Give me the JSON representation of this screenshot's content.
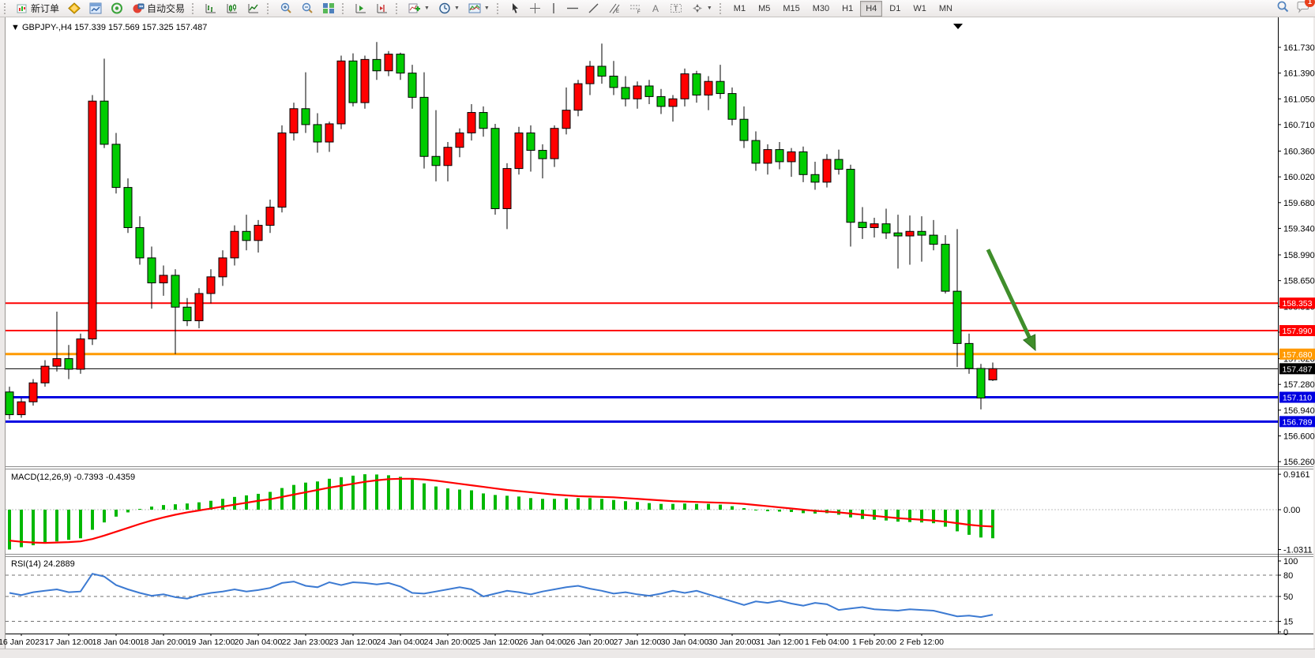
{
  "toolbar": {
    "new_order_label": "新订单",
    "autotrading_label": "自动交易",
    "timeframes": [
      "M1",
      "M5",
      "M15",
      "M30",
      "H1",
      "H4",
      "D1",
      "W1",
      "MN"
    ],
    "active_timeframe": "H4",
    "notification_count": "1"
  },
  "chart": {
    "title": "GBPJPY-,H4",
    "ohlc_text": "157.339 157.569 157.325 157.487",
    "macd_label": "MACD(12,26,9) -0.7393 -0.4359",
    "rsi_label": "RSI(14) 24.2889"
  },
  "chart_data": {
    "type": "candlestick",
    "symbol": "GBPJPY-",
    "period": "H4",
    "current_bar": {
      "open": 157.339,
      "high": 157.569,
      "low": 157.325,
      "close": 157.487
    },
    "price_axis_ticks": [
      161.73,
      161.39,
      161.05,
      160.71,
      160.36,
      160.02,
      159.68,
      159.34,
      158.99,
      158.65,
      158.31,
      157.97,
      157.62,
      157.28,
      156.94,
      156.6,
      156.26
    ],
    "price_lines": [
      {
        "price": 158.353,
        "label": "158.353",
        "color": "#fe0000",
        "width": 2
      },
      {
        "price": 157.99,
        "label": "157.990",
        "color": "#fe0000",
        "width": 2
      },
      {
        "price": 157.68,
        "label": "157.680",
        "color": "#ff9a00",
        "width": 3
      },
      {
        "price": 157.487,
        "label": "157.487",
        "color": "#000000",
        "width": 1
      },
      {
        "price": 157.11,
        "label": "157.110",
        "color": "#0000e1",
        "width": 3
      },
      {
        "price": 156.789,
        "label": "156.789",
        "color": "#0000e1",
        "width": 3
      }
    ],
    "time_labels": [
      "16 Jan 2023",
      "17 Jan 12:00",
      "18 Jan 04:00",
      "18 Jan 20:00",
      "19 Jan 12:00",
      "20 Jan 04:00",
      "22 Jan 23:00",
      "23 Jan 12:00",
      "24 Jan 04:00",
      "24 Jan 20:00",
      "25 Jan 12:00",
      "26 Jan 04:00",
      "26 Jan 20:00",
      "27 Jan 12:00",
      "30 Jan 04:00",
      "30 Jan 20:00",
      "31 Jan 12:00",
      "1 Feb 04:00",
      "1 Feb 20:00",
      "2 Feb 12:00"
    ],
    "candles": [
      [
        157.18,
        157.25,
        156.82,
        156.88
      ],
      [
        156.88,
        157.1,
        156.84,
        157.05
      ],
      [
        157.05,
        157.35,
        157.0,
        157.3
      ],
      [
        157.3,
        157.6,
        157.25,
        157.52
      ],
      [
        157.52,
        158.24,
        157.45,
        157.62
      ],
      [
        157.62,
        157.8,
        157.35,
        157.48
      ],
      [
        157.48,
        157.95,
        157.42,
        157.88
      ],
      [
        157.88,
        161.1,
        157.8,
        161.02
      ],
      [
        161.02,
        161.58,
        160.4,
        160.45
      ],
      [
        160.45,
        160.6,
        159.8,
        159.88
      ],
      [
        159.88,
        160.0,
        159.28,
        159.35
      ],
      [
        159.35,
        159.5,
        158.86,
        158.95
      ],
      [
        158.95,
        159.1,
        158.28,
        158.62
      ],
      [
        158.62,
        158.85,
        158.45,
        158.72
      ],
      [
        158.72,
        158.8,
        157.68,
        158.3
      ],
      [
        158.3,
        158.42,
        158.05,
        158.12
      ],
      [
        158.12,
        158.55,
        158.02,
        158.48
      ],
      [
        158.48,
        158.8,
        158.35,
        158.7
      ],
      [
        158.7,
        159.05,
        158.58,
        158.95
      ],
      [
        158.95,
        159.38,
        158.85,
        159.3
      ],
      [
        159.3,
        159.52,
        159.05,
        159.18
      ],
      [
        159.18,
        159.45,
        159.02,
        159.38
      ],
      [
        159.38,
        159.72,
        159.28,
        159.62
      ],
      [
        159.62,
        160.7,
        159.55,
        160.6
      ],
      [
        160.6,
        161.0,
        160.5,
        160.92
      ],
      [
        160.92,
        161.4,
        160.6,
        160.71
      ],
      [
        160.71,
        160.86,
        160.34,
        160.48
      ],
      [
        160.48,
        160.75,
        160.35,
        160.72
      ],
      [
        160.72,
        161.62,
        160.65,
        161.55
      ],
      [
        161.55,
        161.65,
        160.95,
        161.0
      ],
      [
        161.0,
        161.62,
        160.92,
        161.57
      ],
      [
        161.57,
        161.8,
        161.3,
        161.42
      ],
      [
        161.42,
        161.68,
        161.35,
        161.64
      ],
      [
        161.64,
        161.66,
        161.3,
        161.39
      ],
      [
        161.39,
        161.5,
        160.92,
        161.07
      ],
      [
        161.07,
        161.4,
        160.13,
        160.29
      ],
      [
        160.29,
        160.9,
        159.96,
        160.17
      ],
      [
        160.17,
        160.48,
        159.96,
        160.41
      ],
      [
        160.41,
        160.66,
        160.28,
        160.6
      ],
      [
        160.6,
        160.98,
        160.5,
        160.87
      ],
      [
        160.87,
        160.95,
        160.55,
        160.66
      ],
      [
        160.66,
        160.72,
        159.52,
        159.6
      ],
      [
        159.6,
        160.2,
        159.33,
        160.13
      ],
      [
        160.13,
        160.68,
        160.05,
        160.6
      ],
      [
        160.6,
        160.7,
        160.09,
        160.37
      ],
      [
        160.37,
        160.45,
        160.0,
        160.26
      ],
      [
        160.26,
        160.7,
        160.15,
        160.66
      ],
      [
        160.66,
        161.2,
        160.58,
        160.9
      ],
      [
        160.9,
        161.3,
        160.82,
        161.25
      ],
      [
        161.25,
        161.55,
        161.1,
        161.48
      ],
      [
        161.48,
        161.78,
        161.25,
        161.35
      ],
      [
        161.35,
        161.55,
        161.1,
        161.2
      ],
      [
        161.2,
        161.35,
        160.95,
        161.05
      ],
      [
        161.05,
        161.28,
        160.92,
        161.22
      ],
      [
        161.22,
        161.3,
        160.98,
        161.08
      ],
      [
        161.08,
        161.18,
        160.85,
        160.95
      ],
      [
        160.95,
        161.1,
        160.75,
        161.05
      ],
      [
        161.05,
        161.45,
        160.95,
        161.38
      ],
      [
        161.38,
        161.42,
        161.0,
        161.1
      ],
      [
        161.1,
        161.35,
        160.9,
        161.28
      ],
      [
        161.28,
        161.5,
        161.05,
        161.12
      ],
      [
        161.12,
        161.2,
        160.7,
        160.78
      ],
      [
        160.78,
        160.95,
        160.4,
        160.5
      ],
      [
        160.5,
        160.62,
        160.1,
        160.2
      ],
      [
        160.2,
        160.45,
        160.05,
        160.38
      ],
      [
        160.38,
        160.48,
        160.12,
        160.22
      ],
      [
        160.22,
        160.4,
        160.02,
        160.35
      ],
      [
        160.35,
        160.42,
        159.95,
        160.05
      ],
      [
        160.05,
        160.22,
        159.85,
        159.95
      ],
      [
        159.95,
        160.32,
        159.88,
        160.25
      ],
      [
        160.25,
        160.38,
        160.05,
        160.12
      ],
      [
        160.12,
        160.18,
        159.1,
        159.42
      ],
      [
        159.42,
        159.62,
        159.2,
        159.35
      ],
      [
        159.35,
        159.48,
        159.22,
        159.4
      ],
      [
        159.4,
        159.6,
        159.2,
        159.28
      ],
      [
        159.28,
        159.52,
        158.81,
        159.24
      ],
      [
        159.24,
        159.51,
        158.86,
        159.3
      ],
      [
        159.3,
        159.5,
        158.9,
        159.25
      ],
      [
        159.25,
        159.45,
        159.05,
        159.13
      ],
      [
        159.13,
        159.25,
        158.48,
        158.51
      ],
      [
        158.51,
        159.33,
        157.51,
        157.82
      ],
      [
        157.82,
        157.95,
        157.42,
        157.49
      ],
      [
        157.49,
        157.55,
        156.95,
        157.1
      ],
      [
        157.339,
        157.569,
        157.325,
        157.487
      ]
    ],
    "macd": {
      "params": "12,26,9",
      "value": -0.7393,
      "signal_value": -0.4359,
      "axis_labels": [
        "0.9161",
        "0.00",
        "-1.0311"
      ],
      "axis_values": [
        0.9161,
        0,
        -1.0311
      ],
      "histogram": [
        -1.03,
        -0.97,
        -0.92,
        -0.87,
        -0.82,
        -0.78,
        -0.74,
        -0.52,
        -0.33,
        -0.18,
        -0.07,
        0.02,
        0.08,
        0.12,
        0.14,
        0.16,
        0.19,
        0.23,
        0.28,
        0.33,
        0.37,
        0.41,
        0.46,
        0.56,
        0.64,
        0.7,
        0.73,
        0.8,
        0.84,
        0.88,
        0.9161,
        0.91,
        0.89,
        0.85,
        0.78,
        0.68,
        0.6,
        0.55,
        0.52,
        0.5,
        0.42,
        0.38,
        0.36,
        0.34,
        0.3,
        0.28,
        0.28,
        0.29,
        0.3,
        0.3,
        0.28,
        0.25,
        0.22,
        0.2,
        0.17,
        0.15,
        0.15,
        0.16,
        0.15,
        0.15,
        0.13,
        0.09,
        0.04,
        -0.01,
        -0.04,
        -0.05,
        -0.06,
        -0.09,
        -0.1,
        -0.09,
        -0.13,
        -0.2,
        -0.24,
        -0.26,
        -0.28,
        -0.31,
        -0.32,
        -0.33,
        -0.35,
        -0.44,
        -0.56,
        -0.65,
        -0.72,
        -0.7393
      ],
      "signal": [
        -0.8,
        -0.83,
        -0.85,
        -0.86,
        -0.85,
        -0.84,
        -0.82,
        -0.76,
        -0.67,
        -0.57,
        -0.47,
        -0.37,
        -0.28,
        -0.2,
        -0.13,
        -0.07,
        -0.02,
        0.03,
        0.08,
        0.13,
        0.18,
        0.23,
        0.27,
        0.33,
        0.39,
        0.45,
        0.51,
        0.57,
        0.62,
        0.67,
        0.72,
        0.76,
        0.79,
        0.8,
        0.8,
        0.78,
        0.75,
        0.71,
        0.67,
        0.63,
        0.59,
        0.55,
        0.51,
        0.48,
        0.45,
        0.42,
        0.39,
        0.37,
        0.35,
        0.34,
        0.33,
        0.32,
        0.3,
        0.28,
        0.26,
        0.24,
        0.22,
        0.21,
        0.2,
        0.19,
        0.18,
        0.17,
        0.15,
        0.12,
        0.09,
        0.06,
        0.03,
        0.0,
        -0.03,
        -0.05,
        -0.07,
        -0.1,
        -0.13,
        -0.16,
        -0.19,
        -0.22,
        -0.24,
        -0.26,
        -0.28,
        -0.31,
        -0.35,
        -0.39,
        -0.42,
        -0.4359
      ]
    },
    "rsi": {
      "period": 14,
      "value": 24.2889,
      "levels": [
        80,
        50,
        15
      ],
      "axis_labels": [
        "100",
        "80",
        "50",
        "15",
        "0"
      ],
      "axis_values": [
        100,
        80,
        50,
        15,
        0
      ],
      "values": [
        55,
        52,
        56,
        58,
        60,
        56,
        57,
        82,
        78,
        66,
        60,
        55,
        51,
        53,
        49,
        47,
        52,
        55,
        57,
        60,
        57,
        59,
        62,
        69,
        71,
        65,
        63,
        70,
        66,
        70,
        69,
        67,
        69,
        64,
        55,
        54,
        57,
        60,
        63,
        60,
        50,
        54,
        58,
        56,
        53,
        57,
        60,
        63,
        65,
        61,
        58,
        54,
        56,
        53,
        51,
        54,
        58,
        55,
        58,
        53,
        48,
        43,
        38,
        43,
        41,
        44,
        40,
        37,
        41,
        39,
        31,
        33,
        35,
        32,
        31,
        30,
        32,
        31,
        30,
        26,
        22,
        23,
        21,
        24.2889
      ]
    },
    "annotation_arrow": {
      "from": {
        "bar": 82.6,
        "price": 159.06
      },
      "to": {
        "bar": 86.6,
        "price": 157.73
      },
      "color": "#3f8e2b"
    },
    "colors": {
      "bull": "#ff0000",
      "bear": "#00cc00",
      "outline": "#000000",
      "wick": "#000000",
      "macd_hist": "#00b800",
      "macd_signal": "#ff0000",
      "rsi_line": "#3c7ad2"
    }
  }
}
